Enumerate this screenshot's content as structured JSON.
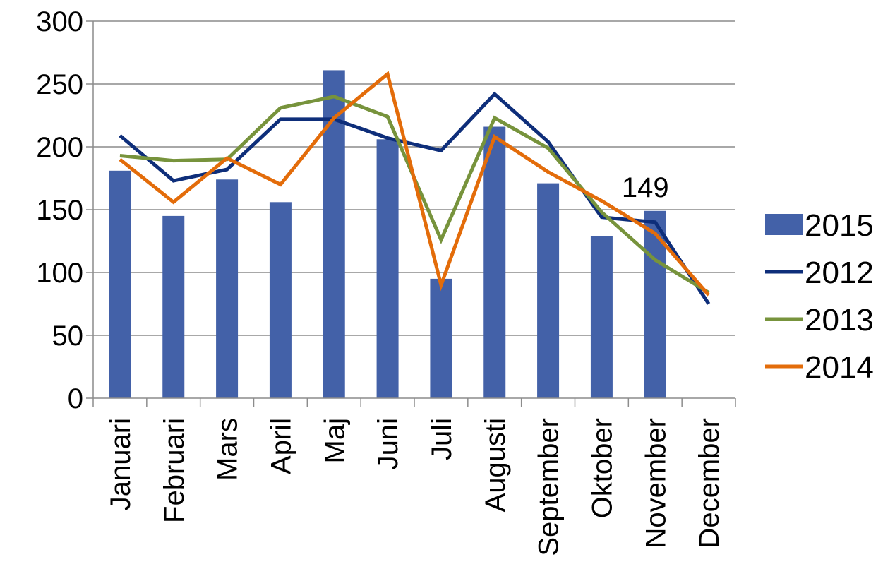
{
  "chart_data": {
    "type": "bar",
    "categories": [
      "Januari",
      "Februari",
      "Mars",
      "April",
      "Maj",
      "Juni",
      "Juli",
      "Augusti",
      "September",
      "Oktober",
      "November",
      "December"
    ],
    "ylim": [
      0,
      300
    ],
    "yticks": [
      0,
      50,
      100,
      150,
      200,
      250,
      300
    ],
    "grid": true,
    "legend": "right",
    "series": [
      {
        "name": "2015",
        "kind": "bar",
        "color": "#4361A8",
        "values": [
          181,
          145,
          174,
          156,
          261,
          206,
          95,
          216,
          171,
          129,
          149,
          null
        ]
      },
      {
        "name": "2012",
        "kind": "line",
        "color": "#0E2E7A",
        "values": [
          209,
          173,
          182,
          222,
          222,
          207,
          197,
          242,
          204,
          144,
          140,
          75
        ]
      },
      {
        "name": "2013",
        "kind": "line",
        "color": "#77933C",
        "values": [
          193,
          189,
          190,
          231,
          240,
          224,
          126,
          223,
          199,
          148,
          110,
          84
        ]
      },
      {
        "name": "2014",
        "kind": "line",
        "color": "#E36C0A",
        "values": [
          190,
          156,
          191,
          170,
          223,
          258,
          90,
          208,
          180,
          157,
          131,
          82
        ]
      }
    ],
    "data_labels": [
      {
        "series": "2015",
        "category": "November",
        "text": "149"
      }
    ]
  }
}
